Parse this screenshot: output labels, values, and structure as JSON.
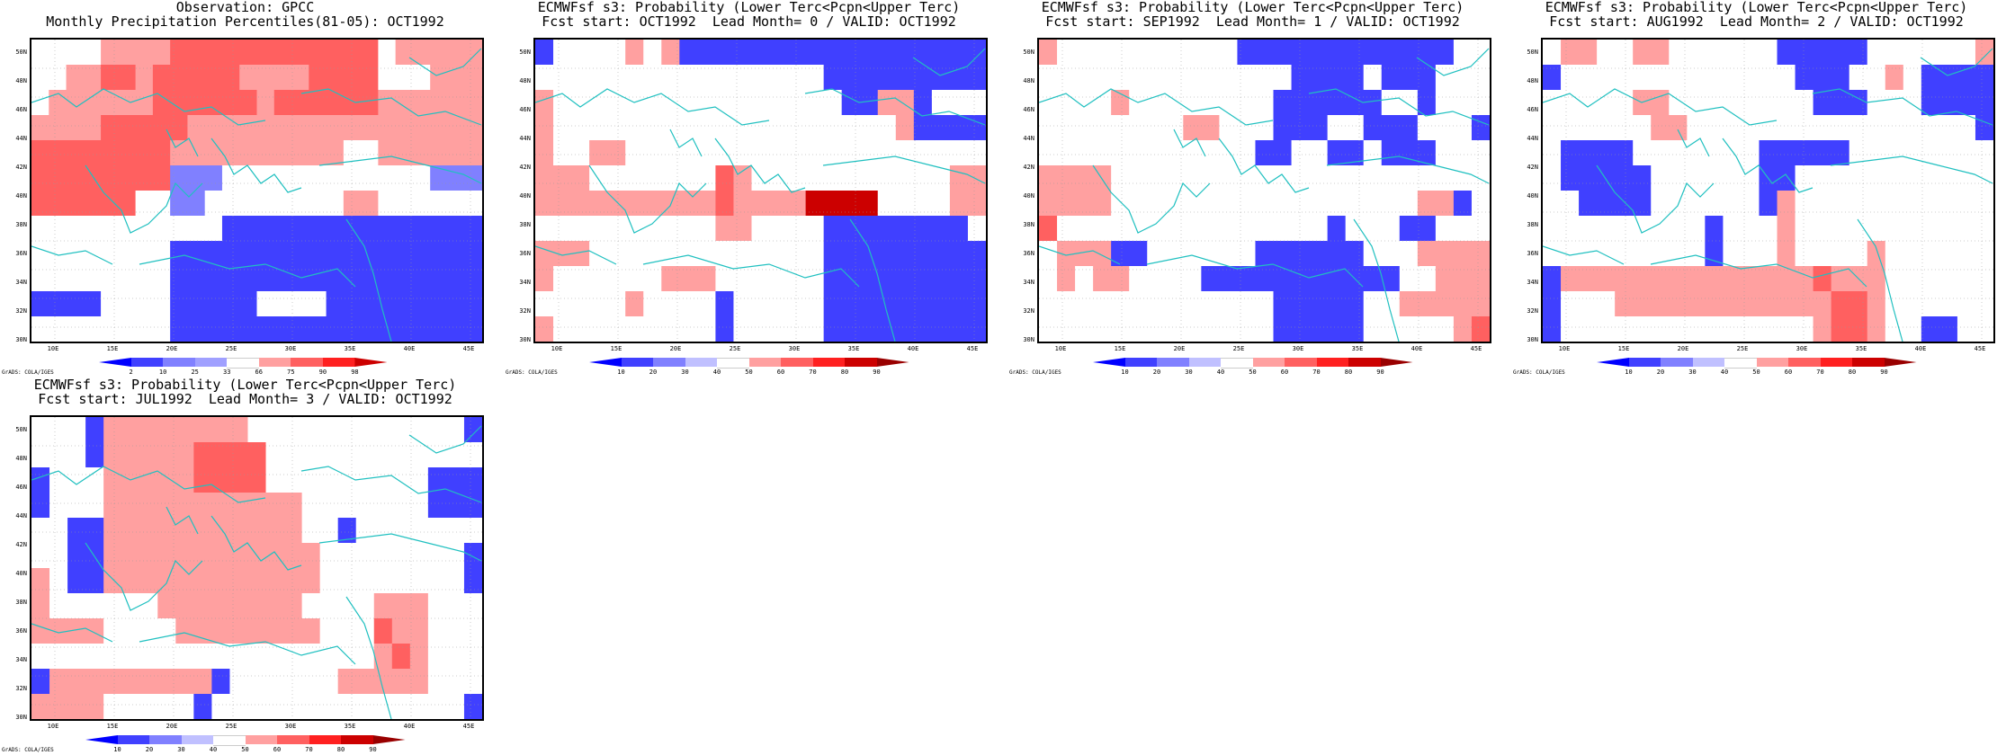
{
  "panels": [
    {
      "title_line1": "Observation: GPCC",
      "title_line2": "Monthly Precipitation Percentiles(81-05): OCT1992",
      "colorbar": [
        "2",
        "10",
        "25",
        "33",
        "66",
        "75",
        "90",
        "98"
      ],
      "cbar_colors": [
        "#0000ff",
        "#4040ff",
        "#8080ff",
        "#a0a0ff",
        "#ffffff",
        "#ffa0a0",
        "#ff6060",
        "#ff2020",
        "#cc0000"
      ],
      "grid": [
        "44445555666666666666455555",
        "44556656666655556666444555",
        "45555556666665666666555555",
        "55556666655555555555555555",
        "66666666555555555544555555",
        "66666666222444444444444222",
        "66666644224444444455444444",
        "44444444444111111111111111",
        "44444444111111111111111111",
        "44444444111111111111111111",
        "11114444111114444111111111",
        "44444444111111111111111111"
      ]
    },
    {
      "title_line1": "ECMWFsf s3: Probability (Lower Terc<Pcpn<Upper Terc)",
      "title_line2": "Fcst start: OCT1992  Lead Month= 0 / VALID: OCT1992",
      "colorbar": [
        "10",
        "20",
        "30",
        "40",
        "50",
        "60",
        "70",
        "80",
        "90"
      ],
      "cbar_colors": [
        "#0000ff",
        "#4040ff",
        "#8080ff",
        "#c0c0ff",
        "#ffffff",
        "#ffa0a0",
        "#ff6060",
        "#ff2020",
        "#cc0000",
        "#990000"
      ],
      "grid": [
        "1444454511111111111111111",
        "4444444444444444111111111",
        "5444444444444444411551444",
        "5444444444444444444451111",
        "5445544444444444444444444",
        "5554444444654444444444455",
        "5555555555655558888444455",
        "4444444444554444111111114",
        "5554444444444444111111111",
        "5444444555444444111111111",
        "4444454444144444111111111",
        "5444444444144444111111111"
      ]
    },
    {
      "title_line1": "ECMWFsf s3: Probability (Lower Terc<Pcpn<Upper Terc)",
      "title_line2": "Fcst start: SEP1992  Lead Month= 1 / VALID: OCT1992",
      "colorbar": [
        "10",
        "20",
        "30",
        "40",
        "50",
        "60",
        "70",
        "80",
        "90"
      ],
      "cbar_colors": [
        "#0000ff",
        "#4040ff",
        "#8080ff",
        "#c0c0ff",
        "#ffffff",
        "#ffa0a0",
        "#ff6060",
        "#ff2020",
        "#cc0000",
        "#990000"
      ],
      "grid": [
        "5444444444411111111111144",
        "4444444444444411114111444",
        "4444544444444111111441444",
        "4444444455444111441114441",
        "4444444444441144114111444",
        "5555444444444444444444444",
        "5555444444444444444445514",
        "6444444444444444144411444",
        "4555114444441111114445555",
        "4545544441111111111144555",
        "4444444444444111114455555",
        "4444444444444111114444456"
      ]
    },
    {
      "title_line1": "ECMWFsf s3: Probability (Lower Terc<Pcpn<Upper Terc)",
      "title_line2": "Fcst start: AUG1992  Lead Month= 2 / VALID: OCT1992",
      "colorbar": [
        "10",
        "20",
        "30",
        "40",
        "50",
        "60",
        "70",
        "80",
        "90"
      ],
      "cbar_colors": [
        "#0000ff",
        "#4040ff",
        "#8080ff",
        "#c0c0ff",
        "#ffffff",
        "#ffa0a0",
        "#ff6060",
        "#ff2020",
        "#cc0000",
        "#990000"
      ],
      "grid": [
        "4554455444444111114444445",
        "1444444444444411144541111",
        "4444455444444441114441111",
        "4444445544444444444444441",
        "4111144444441111144444444",
        "4111114444441144444444444",
        "4411114444441544444444444",
        "4444444441444544444444444",
        "4444444441444544445444444",
        "1555555555555556555444444",
        "1444555555555555665444444",
        "1444444444444445665441144"
      ]
    },
    {
      "title_line1": "ECMWFsf s3: Probability (Lower Terc<Pcpn<Upper Terc)",
      "title_line2": "Fcst start: JUL1992  Lead Month= 3 / VALID: OCT1992",
      "colorbar": [
        "10",
        "20",
        "30",
        "40",
        "50",
        "60",
        "70",
        "80",
        "90"
      ],
      "cbar_colors": [
        "#0000ff",
        "#4040ff",
        "#8080ff",
        "#c0c0ff",
        "#ffffff",
        "#ffa0a0",
        "#ff6060",
        "#ff2020",
        "#cc0000",
        "#990000"
      ],
      "grid": [
        "4441555555554444444444441",
        "4441555556666444444444444",
        "1444555556666444444444111",
        "1444555555555554444444111",
        "4411555555555554414444444",
        "4411555555555555444444441",
        "5411555555555555444444441",
        "5444444555555554444555444",
        "5555444455555555444655444",
        "4444444444444444444565444",
        "1555555555144444455555444",
        "5555444441444444444444441"
      ]
    }
  ],
  "lat_labels": [
    "50N",
    "48N",
    "46N",
    "44N",
    "42N",
    "40N",
    "38N",
    "36N",
    "34N",
    "32N",
    "30N"
  ],
  "lon_labels": [
    "10E",
    "15E",
    "20E",
    "25E",
    "30E",
    "35E",
    "40E",
    "45E"
  ],
  "grads_label": "GrADS: COLA/IGES"
}
